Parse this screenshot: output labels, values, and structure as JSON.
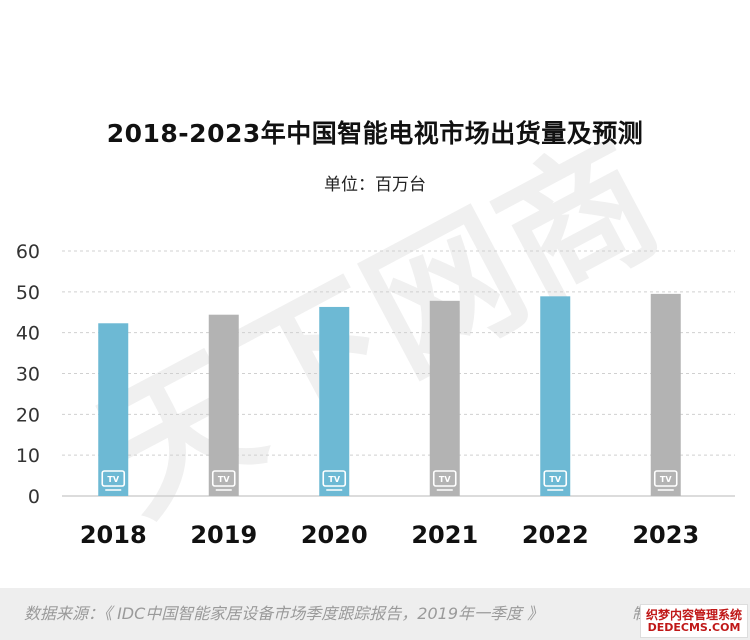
{
  "title": "2018-2023年中国智能电视市场出货量及预测",
  "unit_label": "单位：百万台",
  "watermark": "天下网商",
  "source": "数据来源：《 IDC中国智能家居设备市场季度跟踪报告，2019年一季度 》",
  "credit": "制",
  "badge": {
    "line1": "织梦内容管理系统",
    "line2": "DEDECMS.COM"
  },
  "colors": {
    "blue": "#6db9d4",
    "gray": "#b3b3b3",
    "axis": "#d0d0d0",
    "watermark": "#f0f0f0"
  },
  "bar_icon": "tv-icon",
  "bar_icon_text": "TV",
  "chart_data": {
    "type": "bar",
    "categories": [
      "2018",
      "2019",
      "2020",
      "2021",
      "2022",
      "2023"
    ],
    "values": [
      42.3,
      44.4,
      46.3,
      47.8,
      48.9,
      49.5
    ],
    "bar_colors": [
      "blue",
      "gray",
      "blue",
      "gray",
      "blue",
      "gray"
    ],
    "yticks": [
      0,
      10,
      20,
      30,
      40,
      50,
      60
    ],
    "ylim": [
      0,
      60
    ],
    "xlabel": "",
    "ylabel": "",
    "grid": true
  }
}
